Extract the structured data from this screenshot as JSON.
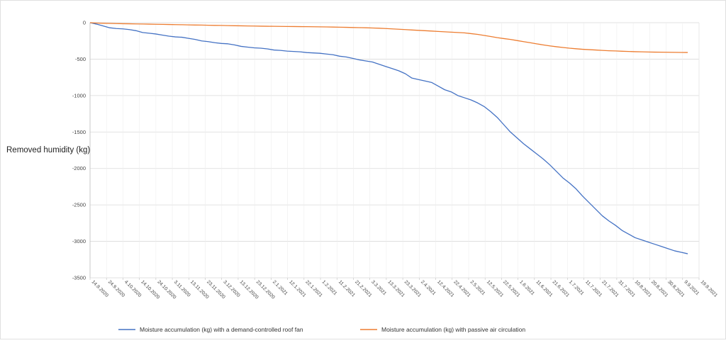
{
  "chart_data": {
    "type": "line",
    "ylabel": "Removed humidity (kg)",
    "xlabel": "",
    "ylim": [
      -3500,
      0
    ],
    "yticks": [
      0,
      -500,
      -1000,
      -1500,
      -2000,
      -2500,
      -3000,
      -3500
    ],
    "x_tick_labels": [
      "14.9.2020",
      "24.9.2020",
      "4.10.2020",
      "14.10.2020",
      "24.10.2020",
      "3.11.2020",
      "13.11.2020",
      "23.11.2020",
      "3.12.2020",
      "13.12.2020",
      "23.12.2020",
      "2.1.2021",
      "12.1.2021",
      "22.1.2021",
      "1.2.2021",
      "11.2.2021",
      "21.2.2021",
      "3.3.2021",
      "13.3.2021",
      "23.3.2021",
      "2.4.2021",
      "12.4.2021",
      "22.4.2021",
      "2.5.2021",
      "12.5.2021",
      "22.5.2021",
      "1.6.2021",
      "11.6.2021",
      "21.6.2021",
      "1.7.2021",
      "11.7.2021",
      "21.7.2021",
      "31.7.2021",
      "10.8.2021",
      "20.8.2021",
      "30.8.2021",
      "9.9.2021",
      "19.9.2021"
    ],
    "grid": "horizontal",
    "legend": "bottom",
    "series": [
      {
        "name": "Moisture accumulation (kg) with a demand-controlled roof fan",
        "color": "#4472C4",
        "values": [
          0,
          -20,
          -45,
          -70,
          -80,
          -85,
          -95,
          -110,
          -135,
          -145,
          -155,
          -170,
          -185,
          -195,
          -200,
          -215,
          -230,
          -250,
          -260,
          -275,
          -285,
          -290,
          -305,
          -325,
          -335,
          -345,
          -350,
          -360,
          -375,
          -380,
          -390,
          -395,
          -400,
          -410,
          -415,
          -420,
          -430,
          -440,
          -460,
          -470,
          -490,
          -510,
          -525,
          -540,
          -570,
          -600,
          -630,
          -660,
          -700,
          -760,
          -780,
          -800,
          -820,
          -870,
          -920,
          -950,
          -1000,
          -1030,
          -1060,
          -1100,
          -1150,
          -1220,
          -1300,
          -1400,
          -1500,
          -1580,
          -1660,
          -1730,
          -1800,
          -1870,
          -1950,
          -2040,
          -2130,
          -2200,
          -2280,
          -2380,
          -2470,
          -2560,
          -2650,
          -2720,
          -2780,
          -2850,
          -2900,
          -2950,
          -2980,
          -3010,
          -3040,
          -3070,
          -3100,
          -3130,
          -3150,
          -3170
        ]
      },
      {
        "name": "Moisture accumulation (kg)  with passive air circulation",
        "color": "#ED7D31",
        "values": [
          0,
          -5,
          -8,
          -10,
          -12,
          -14,
          -15,
          -17,
          -18,
          -20,
          -22,
          -23,
          -25,
          -27,
          -28,
          -30,
          -32,
          -33,
          -35,
          -37,
          -38,
          -40,
          -42,
          -43,
          -45,
          -46,
          -48,
          -49,
          -50,
          -51,
          -52,
          -53,
          -54,
          -55,
          -56,
          -57,
          -58,
          -60,
          -62,
          -64,
          -66,
          -68,
          -70,
          -73,
          -76,
          -80,
          -85,
          -90,
          -95,
          -100,
          -105,
          -110,
          -115,
          -120,
          -125,
          -130,
          -135,
          -140,
          -150,
          -160,
          -175,
          -190,
          -205,
          -218,
          -230,
          -245,
          -260,
          -275,
          -290,
          -305,
          -318,
          -330,
          -340,
          -350,
          -358,
          -365,
          -370,
          -375,
          -380,
          -385,
          -388,
          -392,
          -395,
          -398,
          -400,
          -402,
          -404,
          -405,
          -406,
          -407,
          -408,
          -409
        ]
      }
    ]
  }
}
